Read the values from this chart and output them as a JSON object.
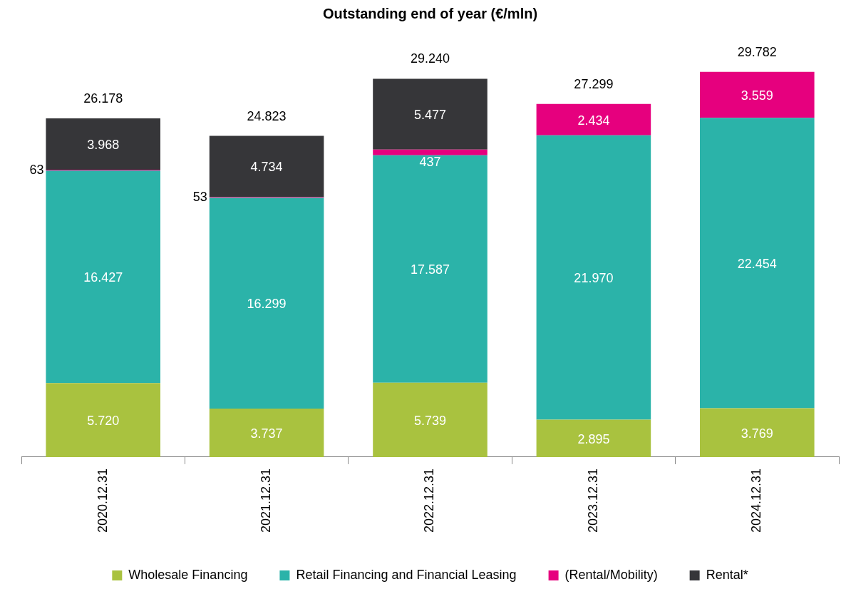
{
  "chart_data": {
    "type": "bar",
    "title": "Outstanding end of year (€/mln)",
    "stacked": true,
    "legend": "bottom",
    "categories": [
      "2020.12.31",
      "2021.12.31",
      "2022.12.31",
      "2023.12.31",
      "2024.12.31"
    ],
    "series": [
      {
        "name": "Wholesale Financing",
        "color": "#a9c23f",
        "values": [
          5720,
          3737,
          5739,
          2895,
          3769
        ],
        "value_labels": [
          "5.720",
          "3.737",
          "5.739",
          "2.895",
          "3.769"
        ]
      },
      {
        "name": "Retail Financing and Financial Leasing",
        "color": "#2bb3a9",
        "values": [
          16427,
          16299,
          17587,
          21970,
          22454
        ],
        "value_labels": [
          "16.427",
          "16.299",
          "17.587",
          "21.970",
          "22.454"
        ]
      },
      {
        "name": "(Rental/Mobility)",
        "color": "#e6007e",
        "values": [
          63,
          53,
          437,
          2434,
          3559
        ],
        "value_labels": [
          "63",
          "53",
          "437",
          "2.434",
          "3.559"
        ]
      },
      {
        "name": "Rental*",
        "color": "#363639",
        "values": [
          3968,
          4734,
          5477,
          null,
          null
        ],
        "value_labels": [
          "3.968",
          "4.734",
          "5.477",
          null,
          null
        ]
      }
    ],
    "totals": [
      "26.178",
      "24.823",
      "29.240",
      "27.299",
      "29.782"
    ]
  }
}
